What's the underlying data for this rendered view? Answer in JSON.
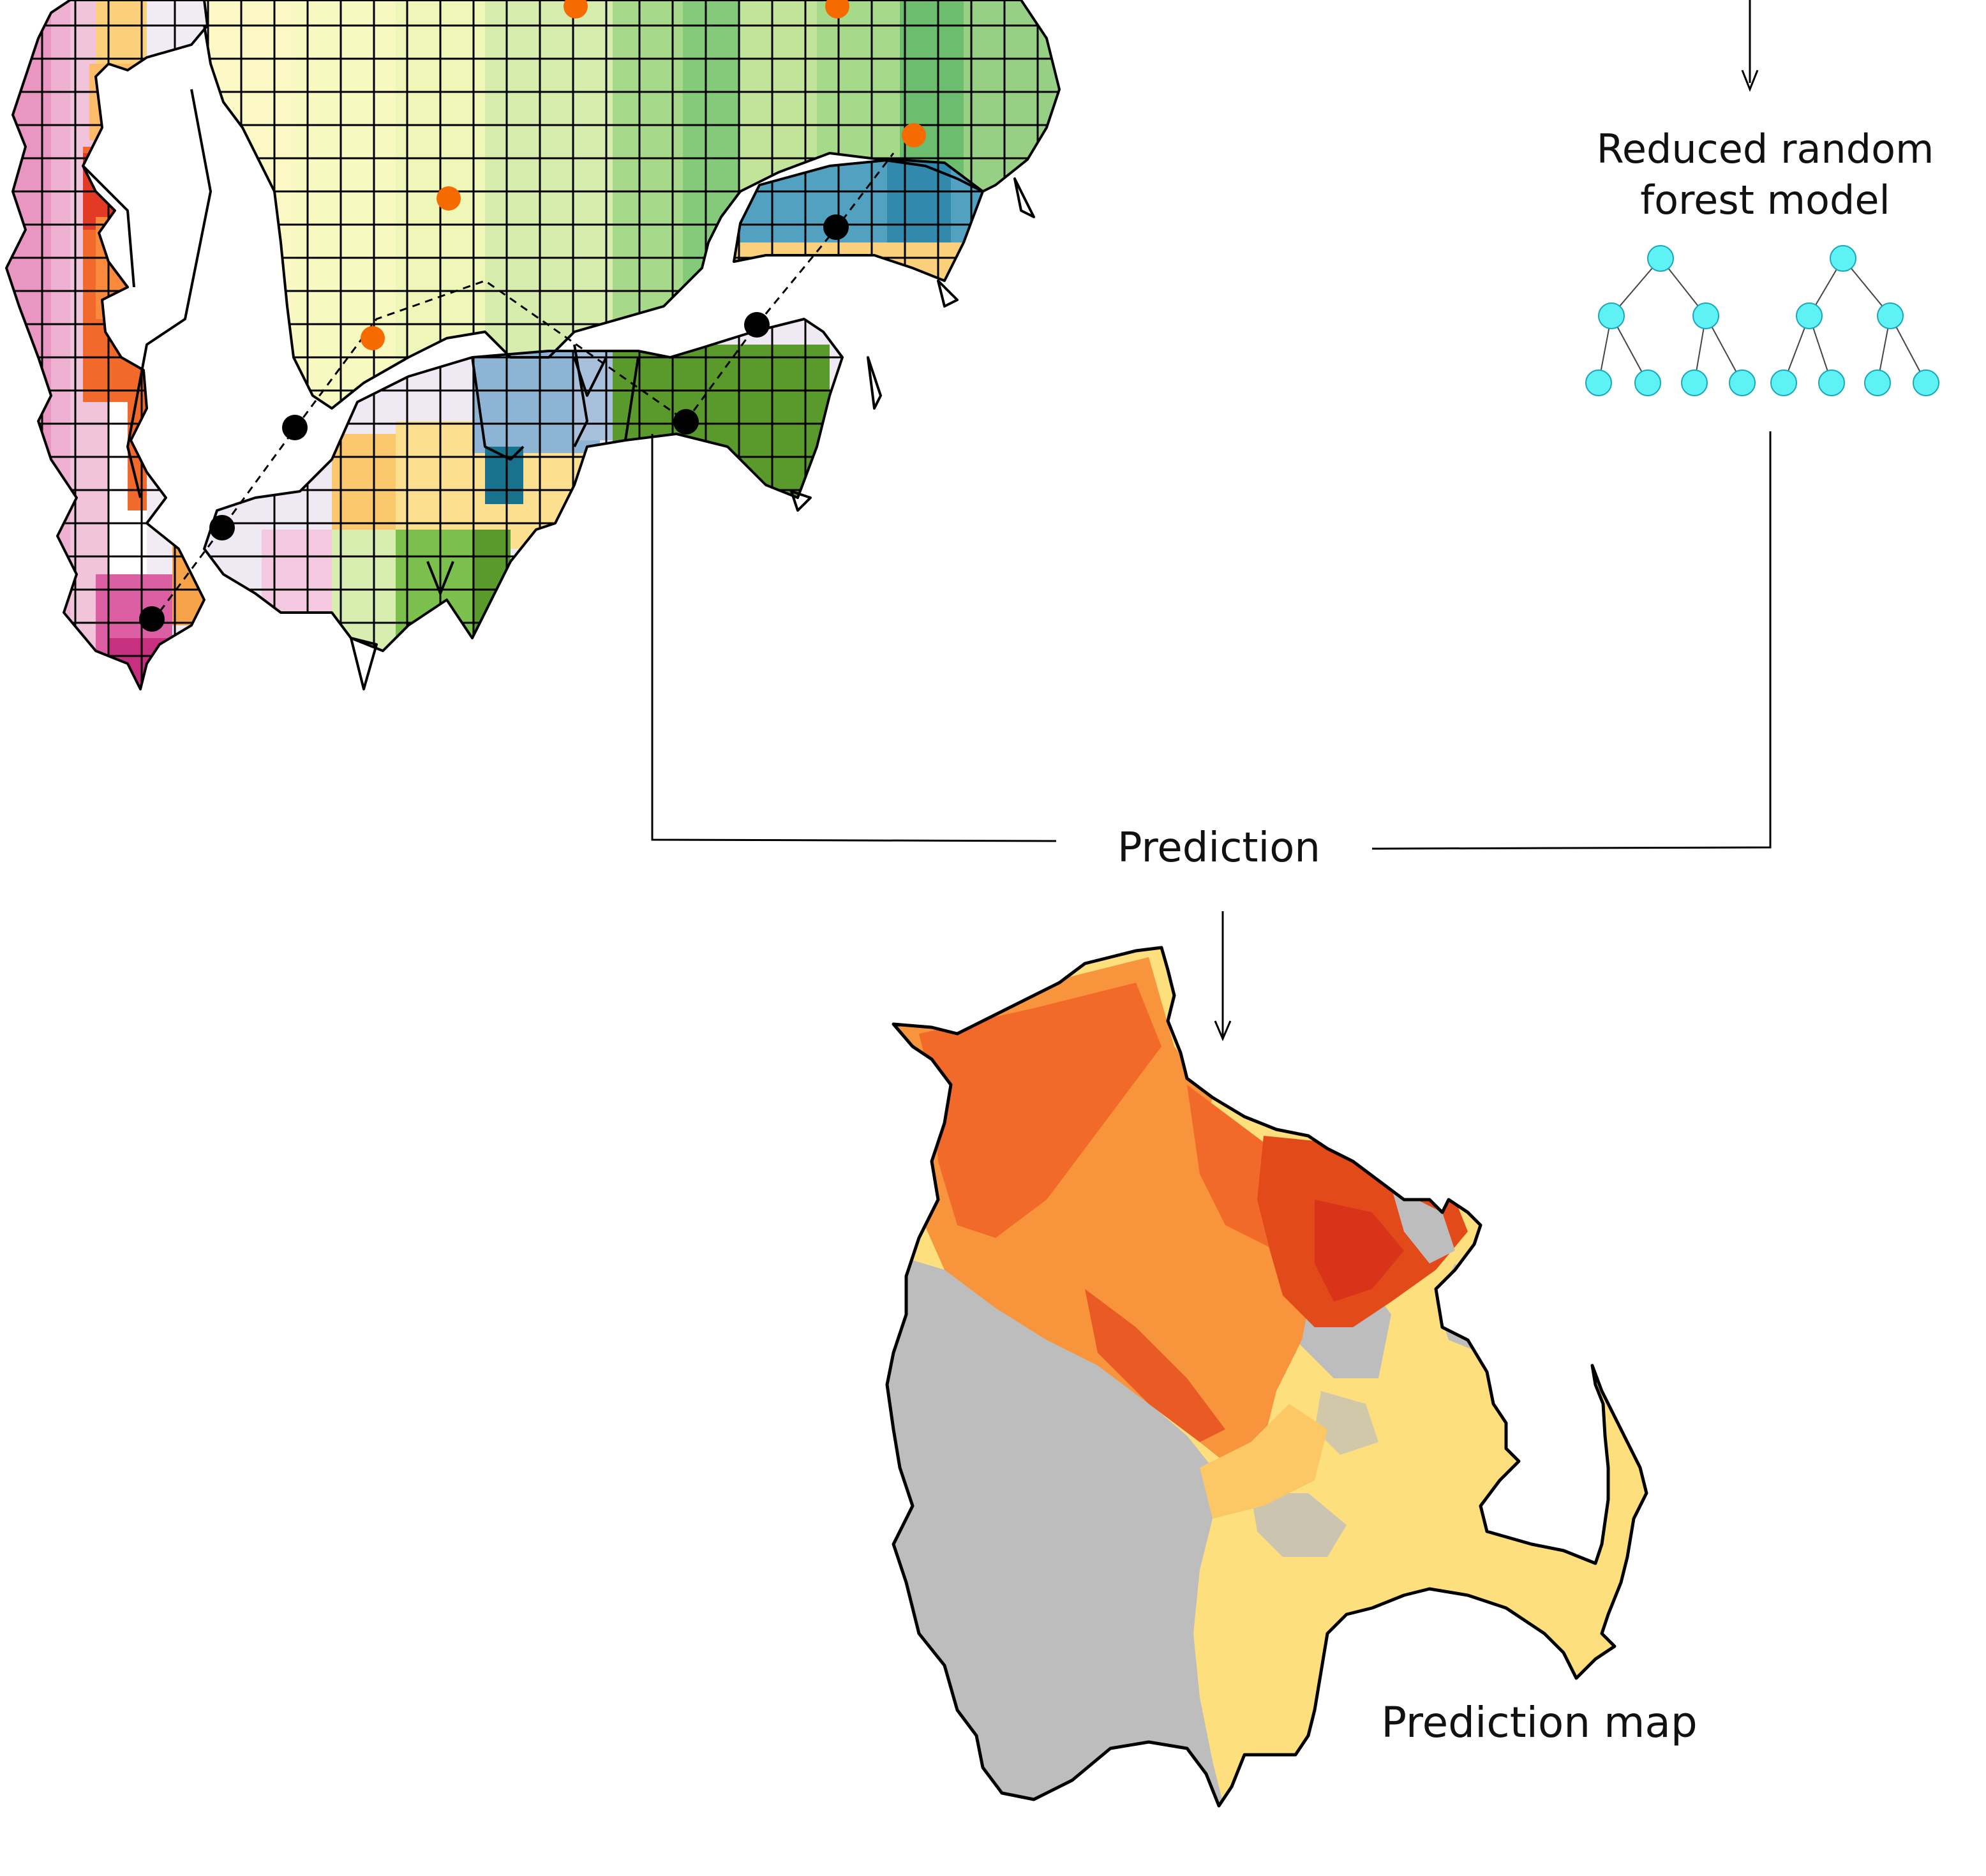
{
  "labels": {
    "model_line1": "Reduced random",
    "model_line2": "forest model",
    "prediction": "Prediction",
    "prediction_map": "Prediction map"
  },
  "colors": {
    "tree_node": "#5ff2f5",
    "tree_node_stroke": "#1aa7b8",
    "map_gray": "#bdbdbd",
    "map_yellow": "#fedf7e",
    "map_orange": "#f7943c",
    "map_red": "#e34a1a",
    "sample_point_orange": "#f56b00",
    "sample_point_black": "#000000"
  },
  "icons": {
    "forest_model": "random-forest-trees-icon",
    "arrow": "arrow-down-icon"
  }
}
